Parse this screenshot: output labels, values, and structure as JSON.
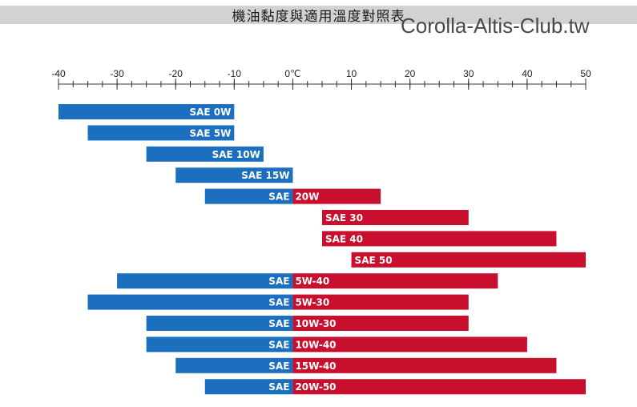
{
  "header": {
    "title": "機油黏度與適用溫度對照表",
    "watermark": "Corolla-Altis-Club.tw"
  },
  "colors": {
    "cold": "#1b6fbe",
    "hot": "#c8102e",
    "title_band": "#d2d2d2"
  },
  "chart_data": {
    "type": "bar",
    "orientation": "horizontal",
    "title": "機油黏度與適用溫度對照表",
    "xlabel": "",
    "ylabel": "",
    "xlim": [
      -40,
      50
    ],
    "ticks": [
      {
        "value": -40,
        "label": "-40"
      },
      {
        "value": -30,
        "label": "-30"
      },
      {
        "value": -20,
        "label": "-20"
      },
      {
        "value": -10,
        "label": "-10"
      },
      {
        "value": 0,
        "label": "0℃"
      },
      {
        "value": 10,
        "label": "10"
      },
      {
        "value": 20,
        "label": "20"
      },
      {
        "value": 30,
        "label": "30"
      },
      {
        "value": 40,
        "label": "40"
      },
      {
        "value": 50,
        "label": "50"
      }
    ],
    "minor_tick_step": 2.5,
    "grid": false,
    "bars": [
      {
        "prefix": "SAE",
        "grade": "0W",
        "label": "SAE 0W",
        "min": -40,
        "max": -10
      },
      {
        "prefix": "SAE",
        "grade": "5W",
        "label": "SAE 5W",
        "min": -35,
        "max": -10
      },
      {
        "prefix": "SAE",
        "grade": "10W",
        "label": "SAE 10W",
        "min": -25,
        "max": -5
      },
      {
        "prefix": "SAE",
        "grade": "15W",
        "label": "SAE 15W",
        "min": -20,
        "max": 0
      },
      {
        "prefix": "SAE",
        "grade": "20W",
        "label": "SAE 20W",
        "min": -15,
        "max": 15
      },
      {
        "prefix": "SAE",
        "grade": "30",
        "label": "SAE 30",
        "min": 5,
        "max": 30
      },
      {
        "prefix": "SAE",
        "grade": "40",
        "label": "SAE 40",
        "min": 5,
        "max": 45
      },
      {
        "prefix": "SAE",
        "grade": "50",
        "label": "SAE 50",
        "min": 10,
        "max": 50
      },
      {
        "prefix": "SAE",
        "grade": "5W-40",
        "label": "SAE 5W-40",
        "min": -30,
        "max": 35
      },
      {
        "prefix": "SAE",
        "grade": "5W-30",
        "label": "SAE 5W-30",
        "min": -35,
        "max": 30
      },
      {
        "prefix": "SAE",
        "grade": "10W-30",
        "label": "SAE 10W-30",
        "min": -25,
        "max": 30
      },
      {
        "prefix": "SAE",
        "grade": "10W-40",
        "label": "SAE 10W-40",
        "min": -25,
        "max": 40
      },
      {
        "prefix": "SAE",
        "grade": "15W-40",
        "label": "SAE 15W-40",
        "min": -20,
        "max": 45
      },
      {
        "prefix": "SAE",
        "grade": "20W-50",
        "label": "SAE 20W-50",
        "min": -15,
        "max": 50
      }
    ]
  }
}
